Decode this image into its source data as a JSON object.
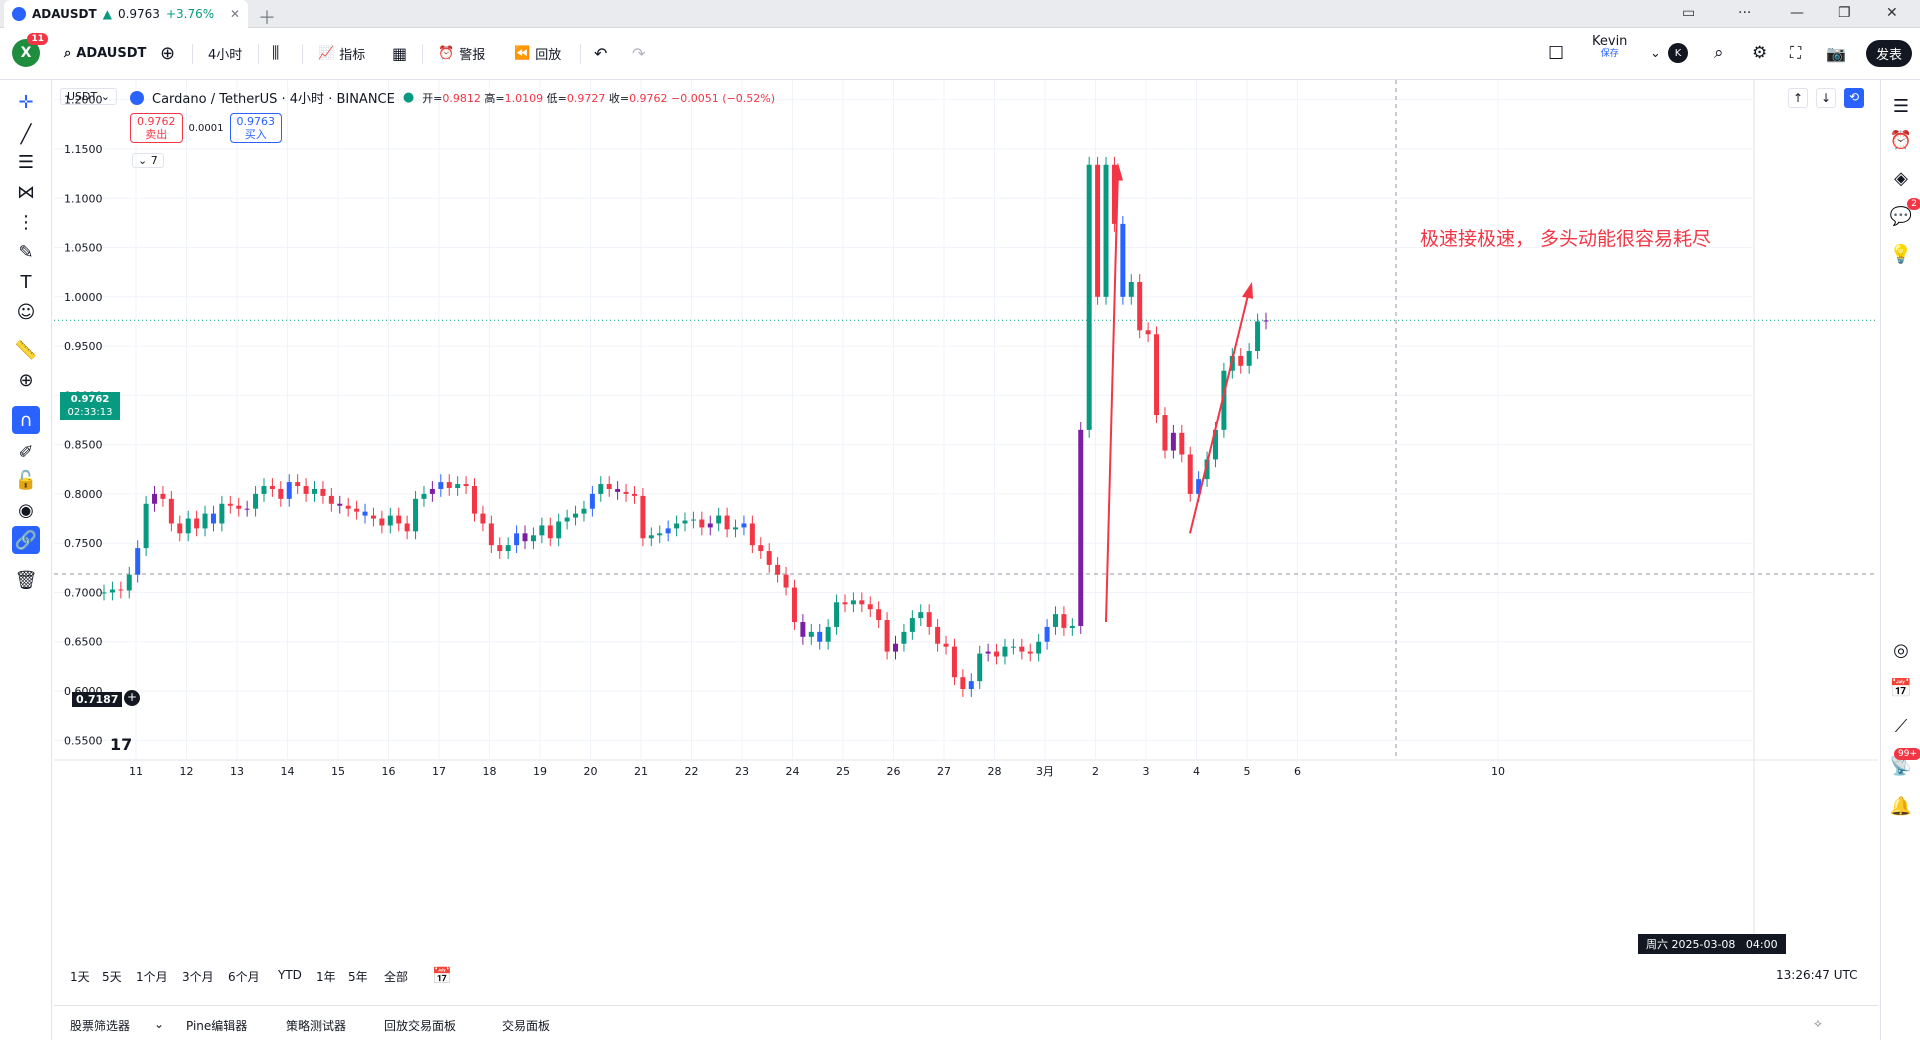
{
  "tab": {
    "symbol": "ADAUSDT",
    "arrow": "▲",
    "price": "0.9763",
    "change": "+3.76%",
    "close": "✕",
    "new": "＋"
  },
  "window": {
    "monitor": "▭",
    "more": "···",
    "min": "—",
    "restore": "❐",
    "close": "✕"
  },
  "toolbar": {
    "badge": "11",
    "avatar": "X",
    "symbol": "ADAUSDT",
    "interval": "4小时",
    "indicators": "指标",
    "alert": "警报",
    "replay": "回放",
    "user": "Kevin",
    "saved": "保存",
    "user_initial": "K",
    "publish": "发表"
  },
  "legend": {
    "currency": "USDT",
    "title": "Cardano / TetherUS · 4小时 · BINANCE",
    "o_label": "开=",
    "o": "0.9812",
    "h_label": "高=",
    "h": "1.0109",
    "l_label": "低=",
    "l": "0.9727",
    "c_label": "收=",
    "c": "0.9762",
    "chg": "−0.0051 (−0.52%)",
    "sell_price": "0.9762",
    "sell": "卖出",
    "spread": "0.0001",
    "buy_price": "0.9763",
    "buy": "买入",
    "collapse": "7"
  },
  "price_tags": {
    "last": "0.9762",
    "countdown": "02:33:13",
    "cursor": "0.7187"
  },
  "annotation": "极速接极速， 多头动能很容易耗尽",
  "crosshair_label": "周六 2025-03-08   04:00",
  "colors": {
    "up": "#089981",
    "down": "#f23645",
    "blue": "#2962ff",
    "annotation": "#f23645"
  },
  "timeframes": [
    "1天",
    "5天",
    "1个月",
    "3个月",
    "6个月",
    "YTD",
    "1年",
    "5年",
    "全部"
  ],
  "time": "13:26:47 UTC",
  "bottom_tabs": [
    "股票筛选器",
    "Pine编辑器",
    "策略测试器",
    "回放交易面板",
    "交易面板"
  ],
  "chart_data": {
    "type": "candlestick",
    "title": "Cardano / TetherUS · 4小时 · BINANCE",
    "y_ticks": [
      "1.2000",
      "1.1500",
      "1.1000",
      "1.0500",
      "1.0000",
      "0.9500",
      "0.9000",
      "0.8500",
      "0.8000",
      "0.7500",
      "0.7000",
      "0.6500",
      "0.6000",
      "0.5500"
    ],
    "x_ticks": [
      "11",
      "12",
      "13",
      "14",
      "15",
      "16",
      "17",
      "18",
      "19",
      "20",
      "21",
      "22",
      "23",
      "24",
      "25",
      "26",
      "27",
      "28",
      "3月",
      "2",
      "3",
      "4",
      "5",
      "6",
      "10"
    ],
    "ylim": [
      0.53,
      1.22
    ],
    "last_price": 0.9762,
    "closes": [
      0.7,
      0.703,
      0.702,
      0.718,
      0.745,
      0.79,
      0.8,
      0.795,
      0.77,
      0.76,
      0.775,
      0.765,
      0.78,
      0.77,
      0.79,
      0.788,
      0.785,
      0.785,
      0.8,
      0.808,
      0.805,
      0.795,
      0.812,
      0.808,
      0.8,
      0.805,
      0.798,
      0.79,
      0.788,
      0.785,
      0.782,
      0.778,
      0.775,
      0.768,
      0.778,
      0.77,
      0.762,
      0.795,
      0.8,
      0.805,
      0.812,
      0.806,
      0.81,
      0.808,
      0.78,
      0.77,
      0.748,
      0.742,
      0.748,
      0.76,
      0.752,
      0.758,
      0.768,
      0.755,
      0.772,
      0.776,
      0.78,
      0.785,
      0.8,
      0.81,
      0.805,
      0.802,
      0.8,
      0.798,
      0.755,
      0.758,
      0.76,
      0.765,
      0.77,
      0.773,
      0.774,
      0.766,
      0.77,
      0.778,
      0.764,
      0.766,
      0.77,
      0.748,
      0.742,
      0.728,
      0.718,
      0.705,
      0.67,
      0.655,
      0.66,
      0.65,
      0.665,
      0.69,
      0.688,
      0.692,
      0.688,
      0.683,
      0.672,
      0.64,
      0.648,
      0.66,
      0.674,
      0.68,
      0.665,
      0.648,
      0.645,
      0.614,
      0.602,
      0.61,
      0.638,
      0.64,
      0.635,
      0.645,
      0.645,
      0.64,
      0.638,
      0.65,
      0.665,
      0.678,
      0.664,
      0.666,
      0.865,
      1.134,
      1.0,
      1.134,
      1.074,
      1.0,
      1.015,
      0.966,
      0.962,
      0.88,
      0.844,
      0.862,
      0.84,
      0.8,
      0.815,
      0.835,
      0.865,
      0.925,
      0.94,
      0.93,
      0.945,
      0.975,
      0.976
    ]
  }
}
